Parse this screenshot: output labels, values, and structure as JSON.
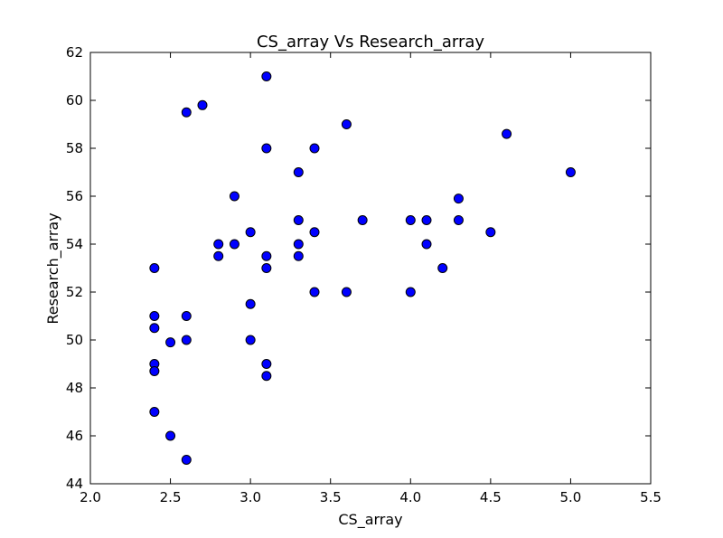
{
  "chart_data": {
    "type": "scatter",
    "title": "CS_array Vs Research_array",
    "xlabel": "CS_array",
    "ylabel": "Research_array",
    "xlim": [
      2.0,
      5.5
    ],
    "ylim": [
      44,
      62
    ],
    "xticks": [
      "2.0",
      "2.5",
      "3.0",
      "3.5",
      "4.0",
      "4.5",
      "5.0",
      "5.5"
    ],
    "yticks": [
      "44",
      "46",
      "48",
      "50",
      "52",
      "54",
      "56",
      "58",
      "60",
      "62"
    ],
    "grid": false,
    "marker_color": "#0000ff",
    "points": [
      {
        "x": 2.4,
        "y": 53.0
      },
      {
        "x": 2.4,
        "y": 51.0
      },
      {
        "x": 2.4,
        "y": 50.5
      },
      {
        "x": 2.4,
        "y": 49.0
      },
      {
        "x": 2.4,
        "y": 48.7
      },
      {
        "x": 2.4,
        "y": 47.0
      },
      {
        "x": 2.5,
        "y": 49.9
      },
      {
        "x": 2.5,
        "y": 46.0
      },
      {
        "x": 2.6,
        "y": 59.5
      },
      {
        "x": 2.6,
        "y": 51.0
      },
      {
        "x": 2.6,
        "y": 50.0
      },
      {
        "x": 2.6,
        "y": 45.0
      },
      {
        "x": 2.7,
        "y": 59.8
      },
      {
        "x": 2.8,
        "y": 54.0
      },
      {
        "x": 2.8,
        "y": 53.5
      },
      {
        "x": 2.9,
        "y": 56.0
      },
      {
        "x": 2.9,
        "y": 54.0
      },
      {
        "x": 3.0,
        "y": 54.5
      },
      {
        "x": 3.0,
        "y": 51.5
      },
      {
        "x": 3.0,
        "y": 50.0
      },
      {
        "x": 3.1,
        "y": 61.0
      },
      {
        "x": 3.1,
        "y": 58.0
      },
      {
        "x": 3.1,
        "y": 53.5
      },
      {
        "x": 3.1,
        "y": 53.0
      },
      {
        "x": 3.1,
        "y": 49.0
      },
      {
        "x": 3.1,
        "y": 48.5
      },
      {
        "x": 3.3,
        "y": 57.0
      },
      {
        "x": 3.3,
        "y": 55.0
      },
      {
        "x": 3.3,
        "y": 54.0
      },
      {
        "x": 3.3,
        "y": 53.5
      },
      {
        "x": 3.4,
        "y": 58.0
      },
      {
        "x": 3.4,
        "y": 54.5
      },
      {
        "x": 3.4,
        "y": 52.0
      },
      {
        "x": 3.6,
        "y": 59.0
      },
      {
        "x": 3.6,
        "y": 52.0
      },
      {
        "x": 3.7,
        "y": 55.0
      },
      {
        "x": 4.0,
        "y": 55.0
      },
      {
        "x": 4.0,
        "y": 52.0
      },
      {
        "x": 4.1,
        "y": 55.0
      },
      {
        "x": 4.1,
        "y": 54.0
      },
      {
        "x": 4.2,
        "y": 53.0
      },
      {
        "x": 4.3,
        "y": 55.9
      },
      {
        "x": 4.3,
        "y": 55.0
      },
      {
        "x": 4.5,
        "y": 54.5
      },
      {
        "x": 4.6,
        "y": 58.6
      },
      {
        "x": 5.0,
        "y": 57.0
      }
    ]
  }
}
